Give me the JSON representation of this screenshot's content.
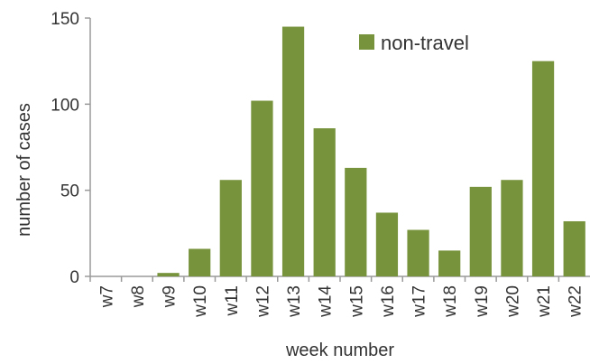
{
  "chart_data": {
    "type": "bar",
    "title": "",
    "xlabel": "week number",
    "ylabel": "number of cases",
    "ylim": [
      0,
      150
    ],
    "yticks": [
      0,
      50,
      100,
      150
    ],
    "grid": false,
    "legend_position": "top-right",
    "categories": [
      "w7",
      "w8",
      "w9",
      "w10",
      "w11",
      "w12",
      "w13",
      "w14",
      "w15",
      "w16",
      "w17",
      "w18",
      "w19",
      "w20",
      "w21",
      "w22"
    ],
    "series": [
      {
        "name": "non-travel",
        "color": "#77933c",
        "values": [
          0,
          0,
          2,
          16,
          56,
          102,
          145,
          86,
          63,
          37,
          27,
          15,
          52,
          56,
          125,
          32
        ]
      }
    ]
  }
}
